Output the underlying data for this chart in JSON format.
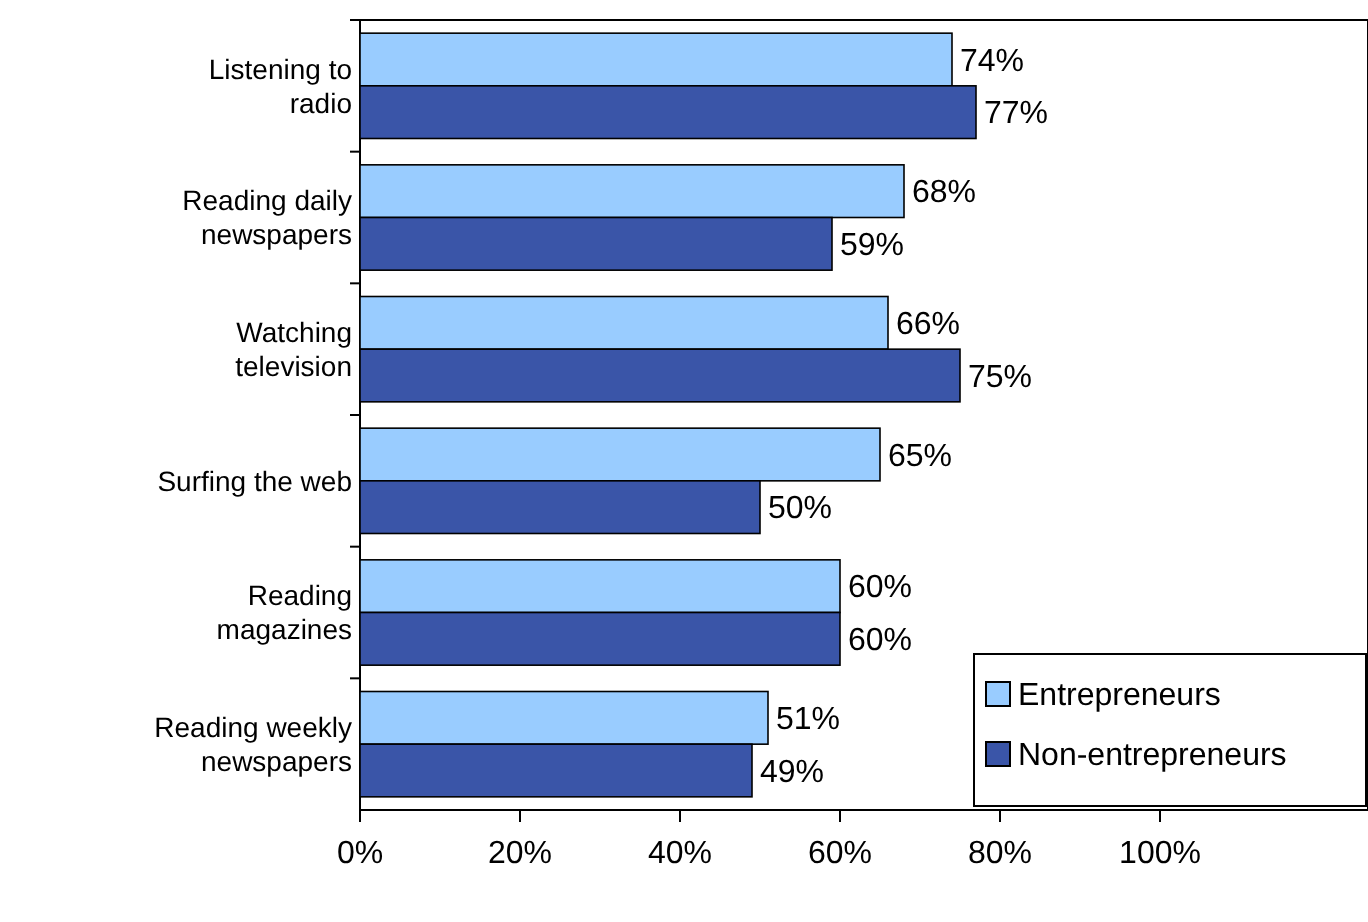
{
  "chart_data": {
    "type": "bar",
    "orientation": "horizontal",
    "categories": [
      "Listening to radio",
      "Reading daily newspapers",
      "Watching television",
      "Surfing the web",
      "Reading magazines",
      "Reading weekly newspapers"
    ],
    "series": [
      {
        "name": "Entrepreneurs",
        "color": "#99ccff",
        "values": [
          74,
          68,
          66,
          65,
          60,
          51
        ],
        "value_labels": [
          "74%",
          "68%",
          "66%",
          "65%",
          "60%",
          "51%"
        ]
      },
      {
        "name": "Non-entrepreneurs",
        "color": "#3a55a8",
        "values": [
          77,
          59,
          75,
          50,
          60,
          49
        ],
        "value_labels": [
          "77%",
          "59%",
          "75%",
          "50%",
          "60%",
          "49%"
        ]
      }
    ],
    "xlim": [
      0,
      126
    ],
    "xticks": [
      {
        "value": 0,
        "label": "0%"
      },
      {
        "value": 20,
        "label": "20%"
      },
      {
        "value": 40,
        "label": "40%"
      },
      {
        "value": 60,
        "label": "60%"
      },
      {
        "value": 80,
        "label": "80%"
      },
      {
        "value": 100,
        "label": "100%"
      }
    ],
    "grid": false,
    "legend": "bottom right"
  }
}
